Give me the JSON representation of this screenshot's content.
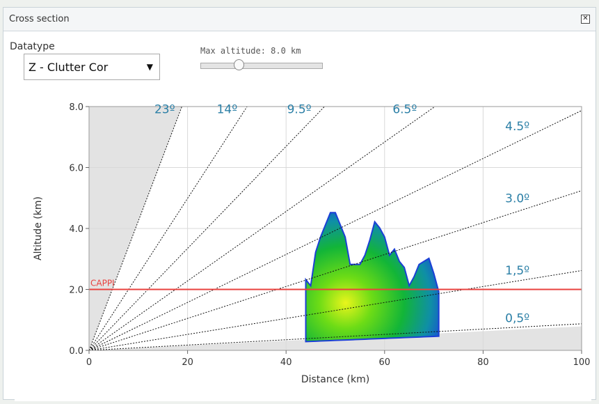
{
  "window": {
    "title": "Cross section",
    "close_glyph": "✕"
  },
  "controls": {
    "datatype_label": "Datatype",
    "datatype_value": "Z - Clutter Cor",
    "datatype_arrow": "▼",
    "max_altitude_label": "Max altitude: 8.0 km",
    "max_altitude_fraction": 0.3
  },
  "colors": {
    "angle_label": "#2b7fa6",
    "cappi": "#e8413e",
    "grid": "#d9d9d9",
    "blind_zone": "#e3e3e3"
  },
  "chart_data": {
    "type": "line",
    "xlabel": "Distance (km)",
    "ylabel": "Altitude (km)",
    "xlim": [
      0,
      100
    ],
    "ylim": [
      0,
      8
    ],
    "x_ticks": [
      "0",
      "20",
      "40",
      "60",
      "80",
      "100"
    ],
    "x_tick_values": [
      0,
      20,
      40,
      60,
      80,
      100
    ],
    "y_ticks": [
      "0.0",
      "2.0",
      "4.0",
      "6.0",
      "8.0"
    ],
    "y_tick_values": [
      0,
      2,
      4,
      6,
      8
    ],
    "grid": true,
    "cappi": {
      "label": "CAPPI",
      "altitude": 2.0
    },
    "elevation_angles": [
      {
        "label": "0,5º",
        "deg": 0.5
      },
      {
        "label": "1,5º",
        "deg": 1.5
      },
      {
        "label": "3.0º",
        "deg": 3.0
      },
      {
        "label": "4.5º",
        "deg": 4.5
      },
      {
        "label": "6.5º",
        "deg": 6.5
      },
      {
        "label": "9.5º",
        "deg": 9.5
      },
      {
        "label": "14º",
        "deg": 14
      },
      {
        "label": "23º",
        "deg": 23
      }
    ],
    "reflectivity_profile": {
      "x": [
        44,
        45,
        46,
        47,
        48,
        49,
        50,
        51,
        52,
        53,
        54,
        55,
        56,
        57,
        58,
        59,
        60,
        61,
        62,
        63,
        64,
        65,
        66,
        67,
        68,
        69,
        70,
        71
      ],
      "top": [
        2.2,
        2.2,
        3.1,
        3.8,
        4.0,
        4.6,
        4.4,
        4.2,
        3.6,
        2.9,
        2.7,
        2.9,
        3.0,
        3.7,
        4.1,
        4.1,
        3.6,
        3.2,
        3.2,
        3.0,
        2.6,
        2.2,
        2.3,
        2.9,
        2.8,
        3.1,
        2.4,
        2.0
      ]
    }
  }
}
